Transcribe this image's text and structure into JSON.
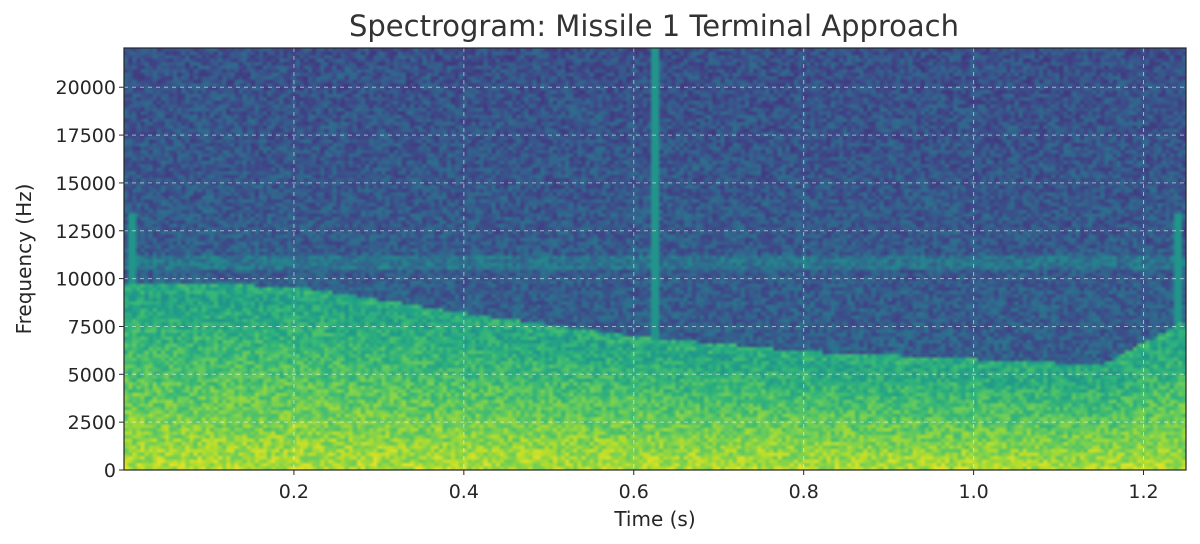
{
  "chart_data": {
    "type": "heatmap",
    "title": "Spectrogram: Missile 1 Terminal Approach",
    "xlabel": "Time (s)",
    "ylabel": "Frequency (Hz)",
    "xlim": [
      0.0,
      1.25
    ],
    "ylim": [
      0,
      22050
    ],
    "xticks": [
      {
        "value": 0.2,
        "label": "0.2"
      },
      {
        "value": 0.4,
        "label": "0.4"
      },
      {
        "value": 0.6,
        "label": "0.6"
      },
      {
        "value": 0.8,
        "label": "0.8"
      },
      {
        "value": 1.0,
        "label": "1.0"
      },
      {
        "value": 1.2,
        "label": "1.2"
      }
    ],
    "yticks": [
      {
        "value": 0,
        "label": "0"
      },
      {
        "value": 2500,
        "label": "2500"
      },
      {
        "value": 5000,
        "label": "5000"
      },
      {
        "value": 7500,
        "label": "7500"
      },
      {
        "value": 10000,
        "label": "10000"
      },
      {
        "value": 12500,
        "label": "12500"
      },
      {
        "value": 15000,
        "label": "15000"
      },
      {
        "value": 17500,
        "label": "17500"
      },
      {
        "value": 20000,
        "label": "20000"
      }
    ],
    "grid": true,
    "colormap": "viridis",
    "features": {
      "energy_edge": [
        {
          "t": 0.0,
          "f": 9800
        },
        {
          "t": 0.2,
          "f": 9600
        },
        {
          "t": 0.4,
          "f": 8200
        },
        {
          "t": 0.6,
          "f": 7000
        },
        {
          "t": 0.8,
          "f": 6200
        },
        {
          "t": 1.0,
          "f": 5800
        },
        {
          "t": 1.15,
          "f": 5500
        },
        {
          "t": 1.25,
          "f": 7800
        }
      ],
      "tonal_band_hz": [
        10500,
        11200
      ],
      "transients": [
        {
          "t": 0.01,
          "f_max": 13500
        },
        {
          "t": 0.625,
          "f_max": 22050
        },
        {
          "t": 1.24,
          "f_max": 13500
        }
      ]
    }
  }
}
